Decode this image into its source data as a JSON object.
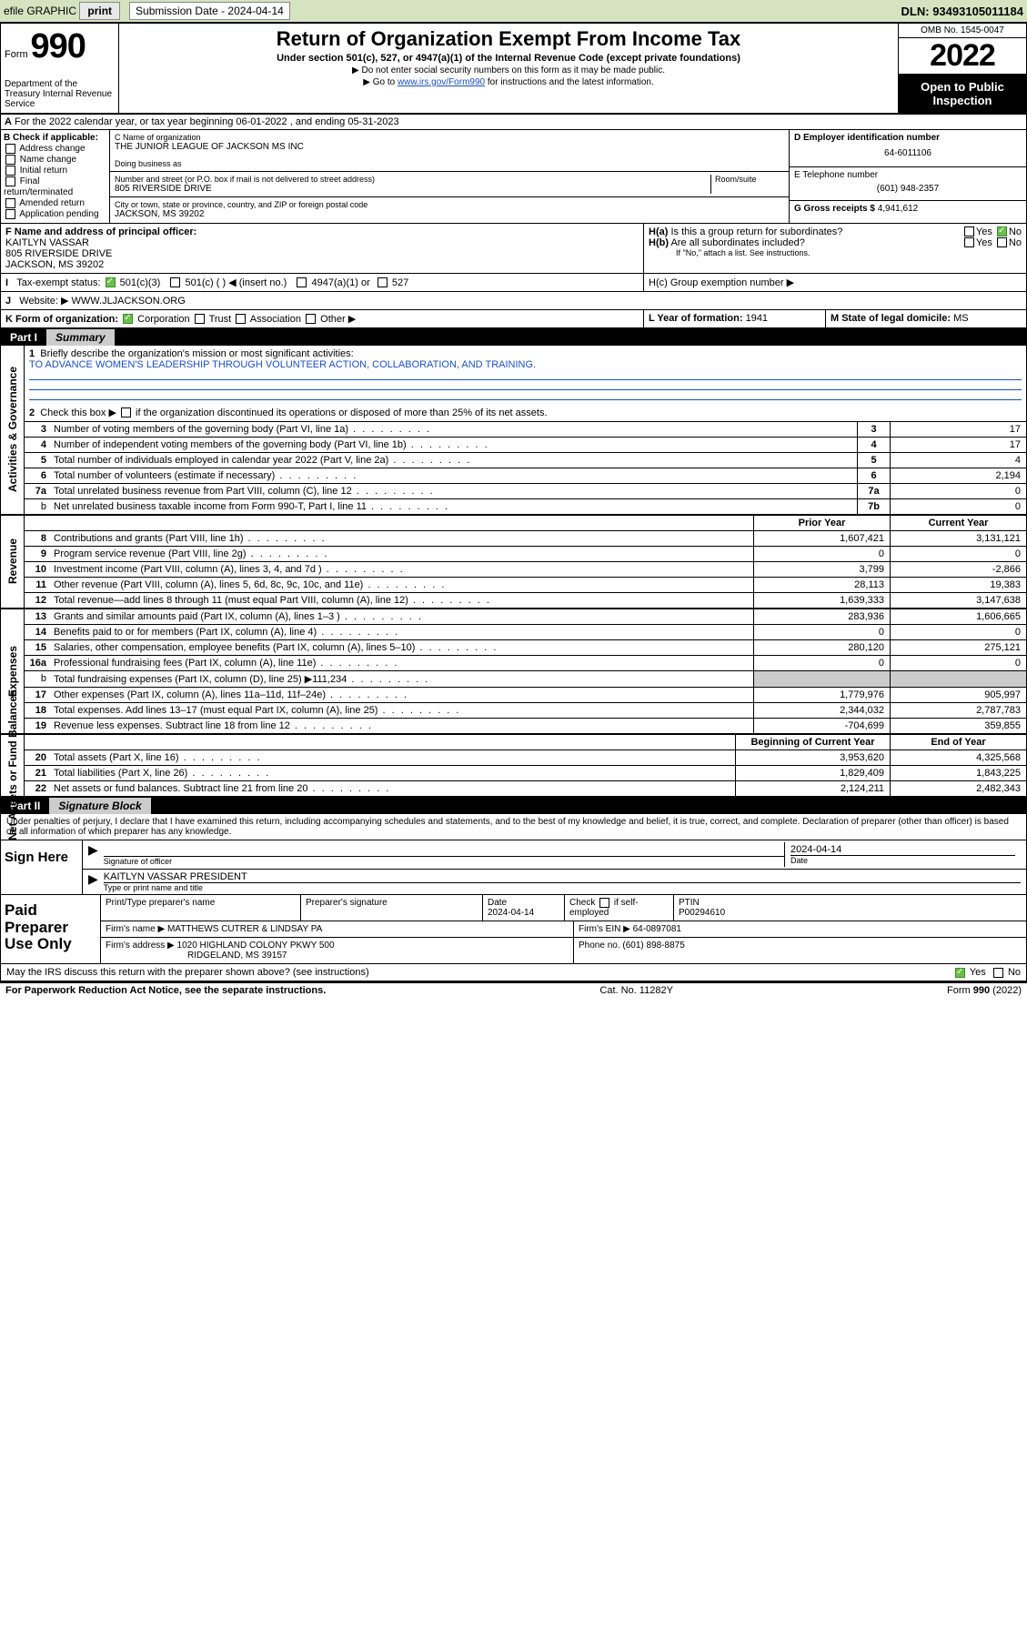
{
  "topbar": {
    "efile": "efile GRAPHIC",
    "print": "print",
    "sub_label": "Submission Date - 2024-04-14",
    "dln": "DLN: 93493105011184"
  },
  "header": {
    "form_word": "Form",
    "form_no": "990",
    "title": "Return of Organization Exempt From Income Tax",
    "subtitle": "Under section 501(c), 527, or 4947(a)(1) of the Internal Revenue Code (except private foundations)",
    "note1": "▶ Do not enter social security numbers on this form as it may be made public.",
    "note2_pre": "▶ Go to ",
    "note2_link": "www.irs.gov/Form990",
    "note2_post": " for instructions and the latest information.",
    "dept": "Department of the Treasury Internal Revenue Service",
    "omb": "OMB No. 1545-0047",
    "year": "2022",
    "open": "Open to Public Inspection"
  },
  "row_a": "For the 2022 calendar year, or tax year beginning 06-01-2022   , and ending 05-31-2023",
  "col_b": {
    "title": "B Check if applicable:",
    "items": [
      "Address change",
      "Name change",
      "Initial return",
      "Final return/terminated",
      "Amended return",
      "Application pending"
    ]
  },
  "col_c": {
    "name_lbl": "C Name of organization",
    "name": "THE JUNIOR LEAGUE OF JACKSON MS INC",
    "dba_lbl": "Doing business as",
    "addr_lbl": "Number and street (or P.O. box if mail is not delivered to street address)",
    "room_lbl": "Room/suite",
    "addr": "805 RIVERSIDE DRIVE",
    "city_lbl": "City or town, state or province, country, and ZIP or foreign postal code",
    "city": "JACKSON, MS  39202"
  },
  "col_dg": {
    "d_lbl": "D Employer identification number",
    "d_val": "64-6011106",
    "e_lbl": "E Telephone number",
    "e_val": "(601) 948-2357",
    "g_lbl": "G Gross receipts $",
    "g_val": "4,941,612"
  },
  "row_f": {
    "f_lbl": "F  Name and address of principal officer:",
    "f_name": "KAITLYN VASSAR",
    "f_addr1": "805 RIVERSIDE DRIVE",
    "f_addr2": "JACKSON, MS  39202",
    "ha_lbl": "H(a)  Is this a group return for subordinates?",
    "hb_lbl": "H(b)  Are all subordinates included?",
    "hb_note": "If \"No,\" attach a list. See instructions.",
    "yes": "Yes",
    "no": "No"
  },
  "row_i": {
    "lbl": "I     Tax-exempt status:",
    "opt1": "501(c)(3)",
    "opt2": "501(c) (  ) ◀ (insert no.)",
    "opt3": "4947(a)(1) or",
    "opt4": "527",
    "hc_lbl": "H(c)  Group exemption number ▶"
  },
  "row_j": {
    "lbl": "J    Website: ▶",
    "val": "WWW.JLJACKSON.ORG"
  },
  "row_k": {
    "lbl": "K Form of organization:",
    "corp": "Corporation",
    "trust": "Trust",
    "assoc": "Association",
    "other": "Other ▶",
    "l_lbl": "L Year of formation:",
    "l_val": "1941",
    "m_lbl": "M State of legal domicile:",
    "m_val": "MS"
  },
  "part1": {
    "tag": "Part I",
    "title": "Summary"
  },
  "summary": {
    "line1_lbl": "Briefly describe the organization's mission or most significant activities:",
    "line1_val": "TO ADVANCE WOMEN'S LEADERSHIP THROUGH VOLUNTEER ACTION, COLLABORATION, AND TRAINING.",
    "line2": "Check this box ▶  if the organization discontinued its operations or disposed of more than 25% of its net assets.",
    "rows_gov": [
      {
        "n": "3",
        "d": "Number of voting members of the governing body (Part VI, line 1a)",
        "box": "3",
        "v": "17"
      },
      {
        "n": "4",
        "d": "Number of independent voting members of the governing body (Part VI, line 1b)",
        "box": "4",
        "v": "17"
      },
      {
        "n": "5",
        "d": "Total number of individuals employed in calendar year 2022 (Part V, line 2a)",
        "box": "5",
        "v": "4"
      },
      {
        "n": "6",
        "d": "Total number of volunteers (estimate if necessary)",
        "box": "6",
        "v": "2,194"
      },
      {
        "n": "7a",
        "d": "Total unrelated business revenue from Part VIII, column (C), line 12",
        "box": "7a",
        "v": "0"
      },
      {
        "n": "b",
        "d": "Net unrelated business taxable income from Form 990-T, Part I, line 11",
        "box": "7b",
        "v": "0",
        "sub": true
      }
    ],
    "col_hdr1": "Prior Year",
    "col_hdr2": "Current Year",
    "rows_rev": [
      {
        "n": "8",
        "d": "Contributions and grants (Part VIII, line 1h)",
        "p": "1,607,421",
        "c": "3,131,121"
      },
      {
        "n": "9",
        "d": "Program service revenue (Part VIII, line 2g)",
        "p": "0",
        "c": "0"
      },
      {
        "n": "10",
        "d": "Investment income (Part VIII, column (A), lines 3, 4, and 7d )",
        "p": "3,799",
        "c": "-2,866"
      },
      {
        "n": "11",
        "d": "Other revenue (Part VIII, column (A), lines 5, 6d, 8c, 9c, 10c, and 11e)",
        "p": "28,113",
        "c": "19,383"
      },
      {
        "n": "12",
        "d": "Total revenue—add lines 8 through 11 (must equal Part VIII, column (A), line 12)",
        "p": "1,639,333",
        "c": "3,147,638"
      }
    ],
    "rows_exp": [
      {
        "n": "13",
        "d": "Grants and similar amounts paid (Part IX, column (A), lines 1–3 )",
        "p": "283,936",
        "c": "1,606,665"
      },
      {
        "n": "14",
        "d": "Benefits paid to or for members (Part IX, column (A), line 4)",
        "p": "0",
        "c": "0"
      },
      {
        "n": "15",
        "d": "Salaries, other compensation, employee benefits (Part IX, column (A), lines 5–10)",
        "p": "280,120",
        "c": "275,121"
      },
      {
        "n": "16a",
        "d": "Professional fundraising fees (Part IX, column (A), line 11e)",
        "p": "0",
        "c": "0"
      },
      {
        "n": "b",
        "d": "Total fundraising expenses (Part IX, column (D), line 25) ▶111,234",
        "p": "grey",
        "c": "grey",
        "sub": true
      },
      {
        "n": "17",
        "d": "Other expenses (Part IX, column (A), lines 11a–11d, 11f–24e)",
        "p": "1,779,976",
        "c": "905,997"
      },
      {
        "n": "18",
        "d": "Total expenses. Add lines 13–17 (must equal Part IX, column (A), line 25)",
        "p": "2,344,032",
        "c": "2,787,783"
      },
      {
        "n": "19",
        "d": "Revenue less expenses. Subtract line 18 from line 12",
        "p": "-704,699",
        "c": "359,855"
      }
    ],
    "col_hdr3": "Beginning of Current Year",
    "col_hdr4": "End of Year",
    "rows_net": [
      {
        "n": "20",
        "d": "Total assets (Part X, line 16)",
        "p": "3,953,620",
        "c": "4,325,568"
      },
      {
        "n": "21",
        "d": "Total liabilities (Part X, line 26)",
        "p": "1,829,409",
        "c": "1,843,225"
      },
      {
        "n": "22",
        "d": "Net assets or fund balances. Subtract line 21 from line 20",
        "p": "2,124,211",
        "c": "2,482,343"
      }
    ],
    "vlabels": {
      "gov": "Activities & Governance",
      "rev": "Revenue",
      "exp": "Expenses",
      "net": "Net Assets or Fund Balances"
    }
  },
  "part2": {
    "tag": "Part II",
    "title": "Signature Block"
  },
  "sig": {
    "declare": "Under penalties of perjury, I declare that I have examined this return, including accompanying schedules and statements, and to the best of my knowledge and belief, it is true, correct, and complete. Declaration of preparer (other than officer) is based on all information of which preparer has any knowledge.",
    "sign_here": "Sign Here",
    "sig_of_officer": "Signature of officer",
    "date_lbl": "Date",
    "date_val": "2024-04-14",
    "name_title": "KAITLYN VASSAR  PRESIDENT",
    "type_name": "Type or print name and title"
  },
  "paid": {
    "label": "Paid Preparer Use Only",
    "h1": "Print/Type preparer's name",
    "h2": "Preparer's signature",
    "h3": "Date",
    "h3v": "2024-04-14",
    "h4": "Check  if self-employed",
    "h5": "PTIN",
    "h5v": "P00294610",
    "firm_lbl": "Firm's name    ▶",
    "firm": "MATTHEWS CUTRER & LINDSAY PA",
    "ein_lbl": "Firm's EIN ▶",
    "ein": "64-0897081",
    "addr_lbl": "Firm's address ▶",
    "addr1": "1020 HIGHLAND COLONY PKWY 500",
    "addr2": "RIDGELAND, MS  39157",
    "phone_lbl": "Phone no.",
    "phone": "(601) 898-8875"
  },
  "bottom": {
    "q": "May the IRS discuss this return with the preparer shown above? (see instructions)",
    "yes": "Yes",
    "no": "No",
    "pra": "For Paperwork Reduction Act Notice, see the separate instructions.",
    "cat": "Cat. No. 11282Y",
    "form": "Form 990 (2022)"
  }
}
